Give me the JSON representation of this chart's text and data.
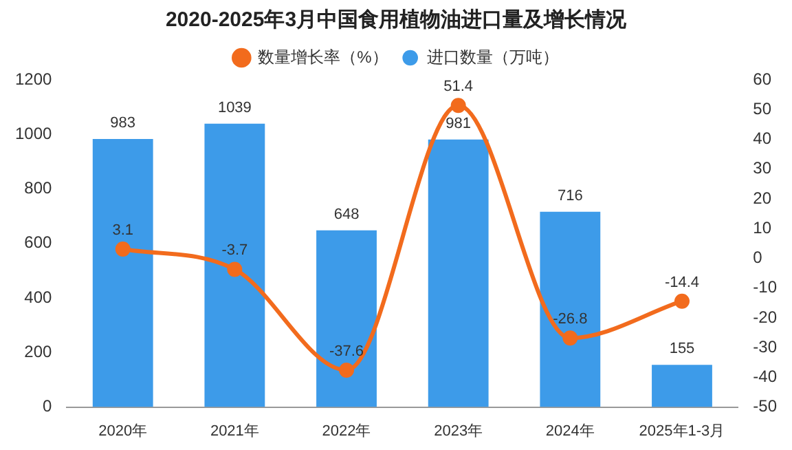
{
  "chart_data": {
    "type": "bar",
    "title": "2020-2025年3月中国食用植物油进口量及增长情况",
    "categories": [
      "2020年",
      "2021年",
      "2022年",
      "2023年",
      "2024年",
      "2025年1-3月"
    ],
    "series": [
      {
        "name": "进口数量（万吨）",
        "color": "#3d9be9",
        "values": [
          983,
          1039,
          648,
          981,
          716,
          155
        ]
      },
      {
        "name": "数量增长率（%）",
        "type": "line",
        "axis": "y2",
        "color": "#f26b1d",
        "values": [
          3.1,
          -3.7,
          -37.6,
          51.4,
          -26.8,
          -14.4
        ]
      }
    ],
    "ylim": [
      0,
      1200
    ],
    "yticks": [
      0,
      200,
      400,
      600,
      800,
      1000,
      1200
    ],
    "y2lim": [
      -50,
      60
    ],
    "y2ticks": [
      -50,
      -40,
      -30,
      -20,
      -10,
      0,
      10,
      20,
      30,
      40,
      50,
      60
    ],
    "grid": false,
    "legend": "top",
    "marker": "circle",
    "data_labels": true
  }
}
